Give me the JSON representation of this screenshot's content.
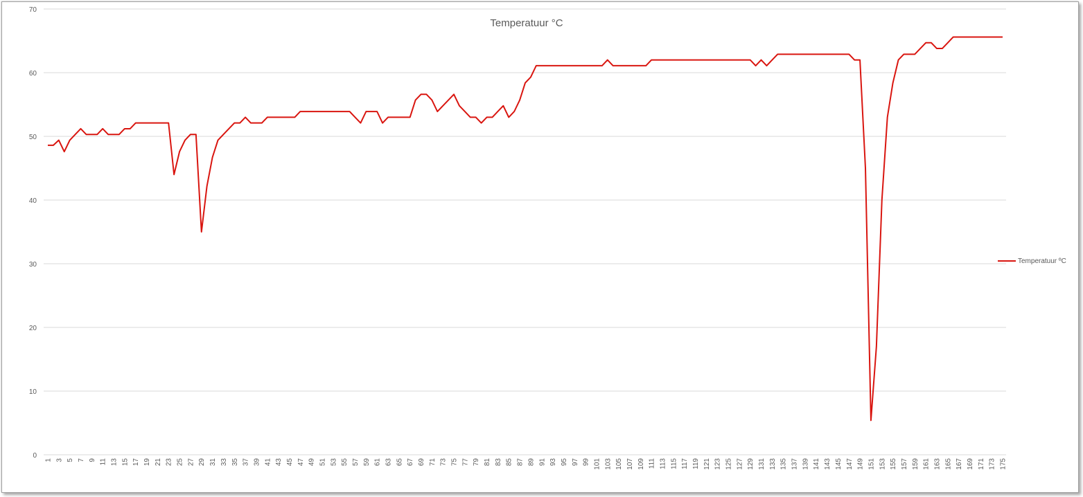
{
  "chart_data": {
    "type": "line",
    "title": "Temperatuur °C",
    "xlabel": "",
    "ylabel": "",
    "ylim": [
      0,
      70
    ],
    "y_ticks": [
      0,
      10,
      20,
      30,
      40,
      50,
      60,
      70
    ],
    "grid": true,
    "legend_position": "right",
    "x_range": [
      1,
      175
    ],
    "x_ticks": [
      1,
      3,
      5,
      7,
      9,
      11,
      13,
      15,
      17,
      19,
      21,
      23,
      25,
      27,
      29,
      31,
      33,
      35,
      37,
      39,
      41,
      43,
      45,
      47,
      49,
      51,
      53,
      55,
      57,
      59,
      61,
      63,
      65,
      67,
      69,
      71,
      73,
      75,
      77,
      79,
      81,
      83,
      85,
      87,
      89,
      91,
      93,
      95,
      97,
      99,
      101,
      103,
      105,
      107,
      109,
      111,
      113,
      115,
      117,
      119,
      121,
      123,
      125,
      127,
      129,
      131,
      133,
      135,
      137,
      139,
      141,
      143,
      145,
      147,
      149,
      151,
      153,
      155,
      157,
      159,
      161,
      163,
      165,
      167,
      169,
      171,
      173,
      175
    ],
    "series": [
      {
        "name": "Temperatuur ºC",
        "color": "#d9150f",
        "values": [
          48.6,
          48.6,
          49.4,
          47.6,
          49.4,
          50.3,
          51.2,
          50.3,
          50.3,
          50.3,
          51.2,
          50.3,
          50.3,
          50.3,
          51.2,
          51.2,
          52.1,
          52.1,
          52.1,
          52.1,
          52.1,
          52.1,
          52.1,
          44.0,
          47.6,
          49.4,
          50.3,
          50.3,
          35.0,
          42.2,
          46.7,
          49.4,
          50.3,
          51.2,
          52.1,
          52.1,
          53.0,
          52.1,
          52.1,
          52.1,
          53.0,
          53.0,
          53.0,
          53.0,
          53.0,
          53.0,
          53.9,
          53.9,
          53.9,
          53.9,
          53.9,
          53.9,
          53.9,
          53.9,
          53.9,
          53.9,
          53.0,
          52.1,
          53.9,
          53.9,
          53.9,
          52.1,
          53.0,
          53.0,
          53.0,
          53.0,
          53.0,
          55.7,
          56.6,
          56.6,
          55.7,
          53.9,
          54.8,
          55.7,
          56.6,
          54.8,
          53.9,
          53.0,
          53.0,
          52.1,
          53.0,
          53.0,
          53.9,
          54.8,
          53.0,
          53.9,
          55.7,
          58.4,
          59.3,
          61.1,
          61.1,
          61.1,
          61.1,
          61.1,
          61.1,
          61.1,
          61.1,
          61.1,
          61.1,
          61.1,
          61.1,
          61.1,
          62.0,
          61.1,
          61.1,
          61.1,
          61.1,
          61.1,
          61.1,
          61.1,
          62.0,
          62.0,
          62.0,
          62.0,
          62.0,
          62.0,
          62.0,
          62.0,
          62.0,
          62.0,
          62.0,
          62.0,
          62.0,
          62.0,
          62.0,
          62.0,
          62.0,
          62.0,
          62.0,
          61.1,
          62.0,
          61.1,
          62.0,
          62.9,
          62.9,
          62.9,
          62.9,
          62.9,
          62.9,
          62.9,
          62.9,
          62.9,
          62.9,
          62.9,
          62.9,
          62.9,
          62.9,
          62.0,
          62.0,
          45.0,
          5.4,
          17.0,
          40.0,
          53.0,
          58.4,
          62.0,
          62.9,
          62.9,
          62.9,
          63.8,
          64.7,
          64.7,
          63.8,
          63.8,
          64.7,
          65.6,
          65.6,
          65.6,
          65.6,
          65.6,
          65.6,
          65.6,
          65.6,
          65.6,
          65.6
        ]
      }
    ]
  }
}
